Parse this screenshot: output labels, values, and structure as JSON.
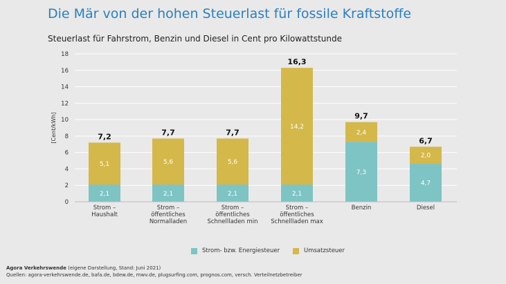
{
  "title": "Die Mär von der hohen Steuerlast für fossile Kraftstoffe",
  "subtitle": "Steuerlast für Fahrstrom, Benzin und Diesel in Cent pro Kilowattstunde",
  "footer": {
    "org": "Agora Verkehrswende",
    "note": " (eigene Darstellung, Stand: Juni 2021)",
    "sources": "Quellen: agora-verkehrswende.de, bafa.de, bdew.de, mwv.de, plugsurfing.com, prognos.com, versch. Verteilnetzbetreiber"
  },
  "chart_data": {
    "type": "bar",
    "stacked": true,
    "ylabel": "[Cent/kWh]",
    "ylim": [
      0,
      18
    ],
    "yticks": [
      0,
      2,
      4,
      6,
      8,
      10,
      12,
      14,
      16,
      18
    ],
    "grid": true,
    "legend_position": "bottom",
    "categories": [
      [
        "Strom –",
        "Haushalt"
      ],
      [
        "Strom –",
        "öffentliches",
        "Normalladen"
      ],
      [
        "Strom –",
        "öffentliches",
        "Schnellladen min"
      ],
      [
        "Strom –",
        "öffentliches",
        "Schnellladen max"
      ],
      [
        "Benzin"
      ],
      [
        "Diesel"
      ]
    ],
    "series": [
      {
        "name": "Strom- bzw. Energiesteuer",
        "color": "#7ec4c4",
        "values": [
          2.1,
          2.1,
          2.1,
          2.1,
          7.3,
          4.7
        ],
        "labels": [
          "2,1",
          "2,1",
          "2,1",
          "2,1",
          "7,3",
          "4,7"
        ]
      },
      {
        "name": "Umsatzsteuer",
        "color": "#d4b84a",
        "values": [
          5.1,
          5.6,
          5.6,
          14.2,
          2.4,
          2.0
        ],
        "labels": [
          "5,1",
          "5,6",
          "5,6",
          "14,2",
          "2,4",
          "2,0"
        ]
      }
    ],
    "totals": [
      7.2,
      7.7,
      7.7,
      16.3,
      9.7,
      6.7
    ],
    "total_labels": [
      "7,2",
      "7,7",
      "7,7",
      "16,3",
      "9,7",
      "6,7"
    ]
  }
}
